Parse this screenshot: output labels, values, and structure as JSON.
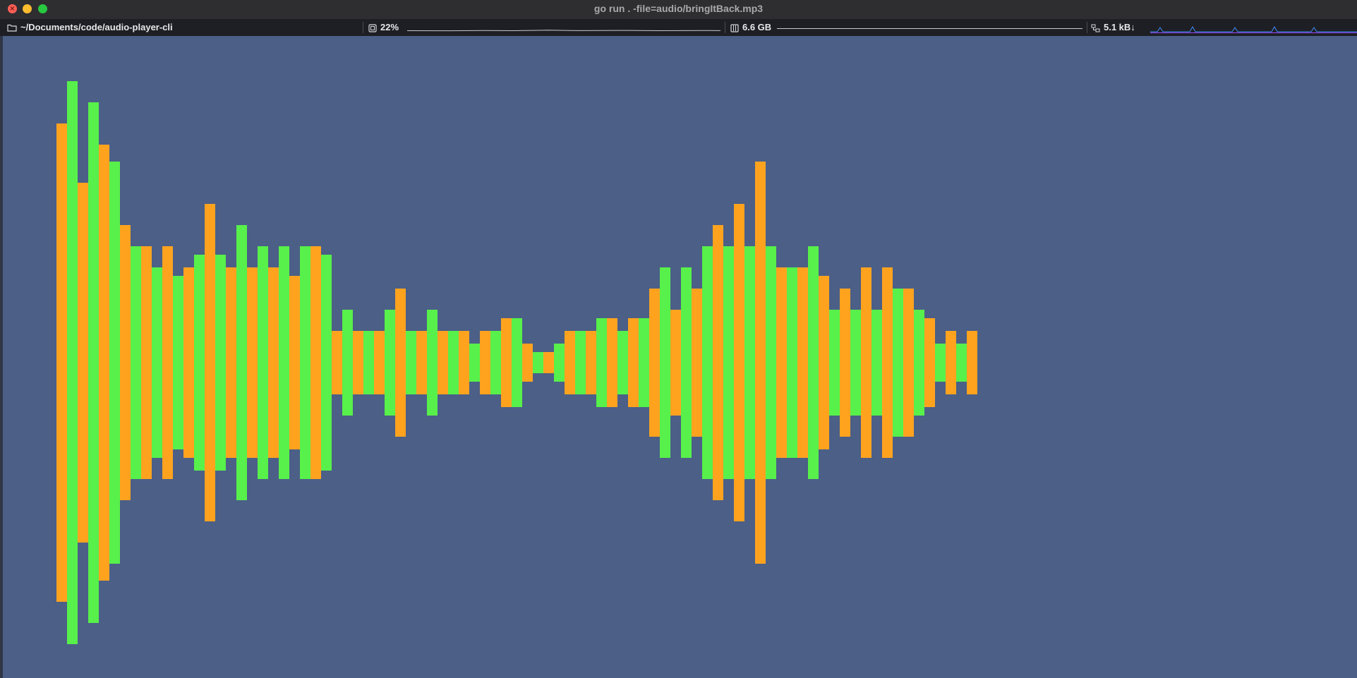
{
  "window": {
    "title": "go run . -file=audio/bringItBack.mp3"
  },
  "status_bar": {
    "path": "~/Documents/code/audio-player-cli",
    "cpu": "22%",
    "memory": "6.6 GB",
    "network": "5.1 kB↓"
  },
  "colors": {
    "bar_green": "#58f04a",
    "bar_orange": "#ffa31f",
    "background": "#4b5f87"
  },
  "visualizer": {
    "type": "bar",
    "center_line": 514,
    "values": [
      56.5,
      66.5,
      42.5,
      61.5,
      51.5,
      47.5,
      32.5,
      27.5,
      27.5,
      22.5,
      27.5,
      20.5,
      22.5,
      25.5,
      37.5,
      25.5,
      22.5,
      32.5,
      22.5,
      27.5,
      22.5,
      27.5,
      20.5,
      27.5,
      27.5,
      25.5,
      7.5,
      12.5,
      7.5,
      7.5,
      7.5,
      12.5,
      17.5,
      7.5,
      7.5,
      12.5,
      7.5,
      7.5,
      7.5,
      4.5,
      7.5,
      7.5,
      10.5,
      10.5,
      4.5,
      2.5,
      2.5,
      4.5,
      7.5,
      7.5,
      7.5,
      10.5,
      10.5,
      7.5,
      10.5,
      10.5,
      17.5,
      22.5,
      12.5,
      22.5,
      17.5,
      27.5,
      32.5,
      27.5,
      37.5,
      27.5,
      47.5,
      27.5,
      22.5,
      22.5,
      22.5,
      27.5,
      20.5,
      12.5,
      17.5,
      12.5,
      22.5,
      12.5,
      22.5,
      17.5,
      17.5,
      12.5,
      10.5,
      4.5,
      7.5,
      4.5,
      7.5
    ]
  }
}
